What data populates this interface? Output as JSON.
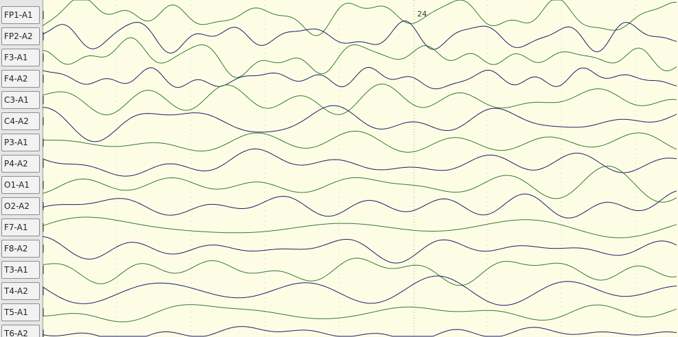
{
  "colors": {
    "background": "#fdfde6",
    "trace_left": "#2f7a2f",
    "trace_right": "#1a1a66",
    "grid": "#c8c8b8",
    "label_panel": "#e6e6e6"
  },
  "channels": [
    {
      "label": "FP1-A1",
      "side": "left"
    },
    {
      "label": "FP2-A2",
      "side": "right"
    },
    {
      "label": "F3-A1",
      "side": "left"
    },
    {
      "label": "F4-A2",
      "side": "right"
    },
    {
      "label": "C3-A1",
      "side": "left"
    },
    {
      "label": "C4-A2",
      "side": "right"
    },
    {
      "label": "P3-A1",
      "side": "left"
    },
    {
      "label": "P4-A2",
      "side": "right"
    },
    {
      "label": "O1-A1",
      "side": "left"
    },
    {
      "label": "O2-A2",
      "side": "right"
    },
    {
      "label": "F7-A1",
      "side": "left"
    },
    {
      "label": "F8-A2",
      "side": "right"
    },
    {
      "label": "T3-A1",
      "side": "left"
    },
    {
      "label": "T4-A2",
      "side": "right"
    },
    {
      "label": "T5-A1",
      "side": "left"
    },
    {
      "label": "T6-A2",
      "side": "right"
    }
  ],
  "timeline": {
    "second_marker_label": "24"
  }
}
